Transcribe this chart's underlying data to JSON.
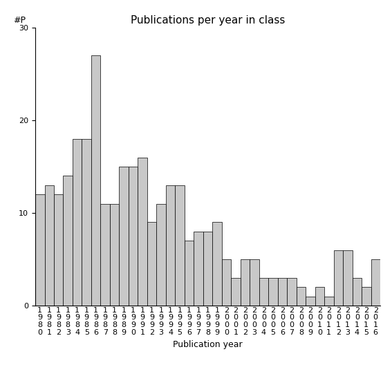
{
  "title": "Publications per year in class",
  "xlabel": "Publication year",
  "ylabel": "#P",
  "years": [
    1980,
    1981,
    1982,
    1983,
    1984,
    1985,
    1986,
    1987,
    1988,
    1989,
    1990,
    1991,
    1992,
    1993,
    1994,
    1995,
    1996,
    1997,
    1998,
    1999,
    2000,
    2001,
    2002,
    2003,
    2004,
    2005,
    2006,
    2007,
    2008,
    2009,
    2010,
    2011,
    2012,
    2013,
    2014,
    2015,
    2016
  ],
  "values": [
    12,
    13,
    12,
    14,
    18,
    18,
    27,
    11,
    11,
    15,
    15,
    16,
    9,
    11,
    13,
    13,
    7,
    8,
    8,
    9,
    5,
    3,
    5,
    5,
    3,
    3,
    3,
    3,
    2,
    1,
    2,
    1,
    6,
    6,
    3,
    2,
    5
  ],
  "bar_color": "#c8c8c8",
  "bar_edge_color": "#000000",
  "ylim": [
    0,
    30
  ],
  "yticks": [
    0,
    10,
    20,
    30
  ],
  "background_color": "#ffffff",
  "title_fontsize": 11,
  "label_fontsize": 9,
  "tick_fontsize": 8
}
